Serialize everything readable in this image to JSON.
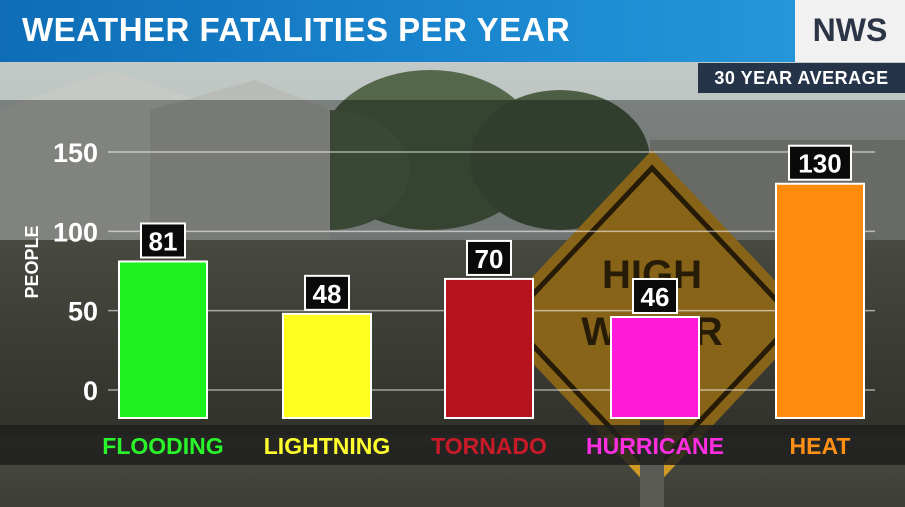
{
  "header": {
    "title": "WEATHER FATALITIES PER YEAR",
    "source": "NWS",
    "subtitle": "30 YEAR AVERAGE"
  },
  "background": {
    "sign_text_top": "HIGH",
    "sign_text_bottom": "WATER"
  },
  "chart_data": {
    "type": "bar",
    "title": "WEATHER FATALITIES PER YEAR",
    "subtitle": "30 YEAR AVERAGE",
    "ylabel": "PEOPLE",
    "xlabel": "",
    "ylim": [
      0,
      150
    ],
    "yticks": [
      0,
      50,
      100,
      150
    ],
    "grid": true,
    "categories": [
      "FLOODING",
      "LIGHTNING",
      "TORNADO",
      "HURRICANE",
      "HEAT"
    ],
    "values": [
      81,
      48,
      70,
      46,
      130
    ],
    "colors": [
      "#1ef21e",
      "#ffff1e",
      "#b5141f",
      "#ff1ad9",
      "#ff8c0f"
    ],
    "label_colors": [
      "#2af52a",
      "#ffff2e",
      "#c81a28",
      "#ff2ee0",
      "#ff9016"
    ]
  }
}
